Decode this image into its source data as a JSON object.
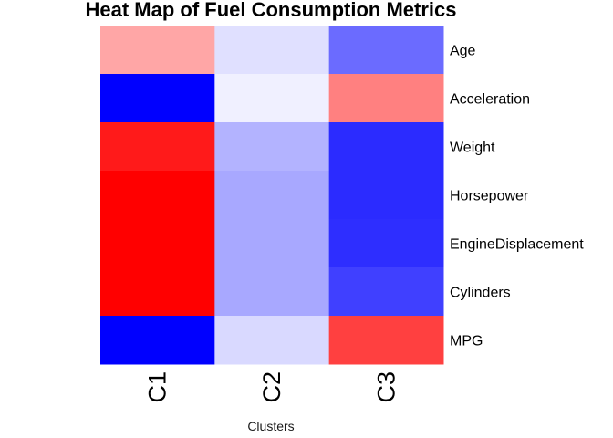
{
  "chart_data": {
    "type": "heatmap",
    "title": "Heat Map of Fuel Consumption Metrics",
    "xlabel": "Clusters",
    "ylabel": "",
    "columns": [
      "C1",
      "C2",
      "C3"
    ],
    "rows": [
      "Age",
      "Acceleration",
      "Weight",
      "Horsepower",
      "EngineDisplacement",
      "Cylinders",
      "MPG"
    ],
    "value_range": [
      -1,
      1
    ],
    "color_scale": {
      "low": "#0000ff",
      "mid": "#ffffff",
      "high": "#ff0000"
    },
    "legend": "none",
    "grid": false,
    "values": [
      [
        0.35,
        -0.12,
        -0.58
      ],
      [
        -1.0,
        -0.06,
        0.5
      ],
      [
        0.9,
        -0.3,
        -0.83
      ],
      [
        1.0,
        -0.34,
        -0.83
      ],
      [
        1.0,
        -0.34,
        -0.82
      ],
      [
        1.0,
        -0.34,
        -0.75
      ],
      [
        -1.0,
        -0.15,
        0.75
      ]
    ]
  }
}
